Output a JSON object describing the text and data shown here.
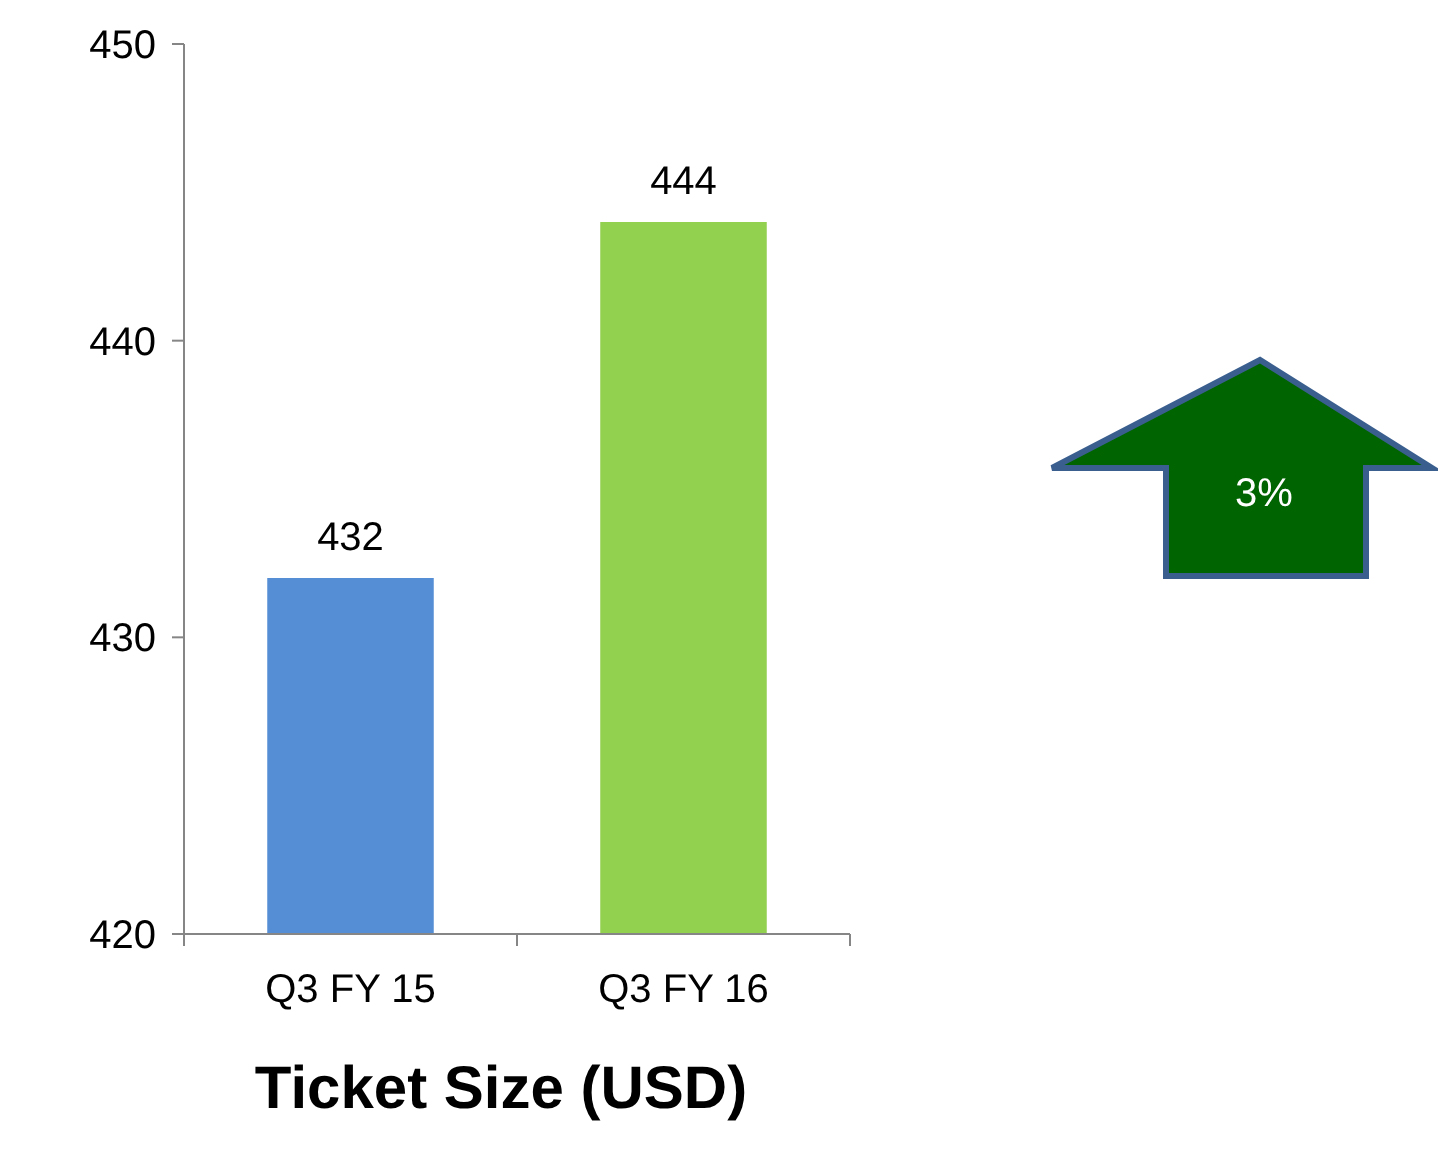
{
  "chart_data": {
    "type": "bar",
    "xlabel": "Ticket Size (USD)",
    "categories": [
      "Q3 FY 15",
      "Q3 FY 16"
    ],
    "values": [
      432,
      444
    ],
    "colors": [
      "#558ed5",
      "#92d050"
    ],
    "ylim": [
      420,
      450
    ],
    "yticks": [
      420,
      430,
      440,
      450
    ],
    "data_labels": true,
    "grid": false,
    "annotations": [
      "3%"
    ]
  }
}
